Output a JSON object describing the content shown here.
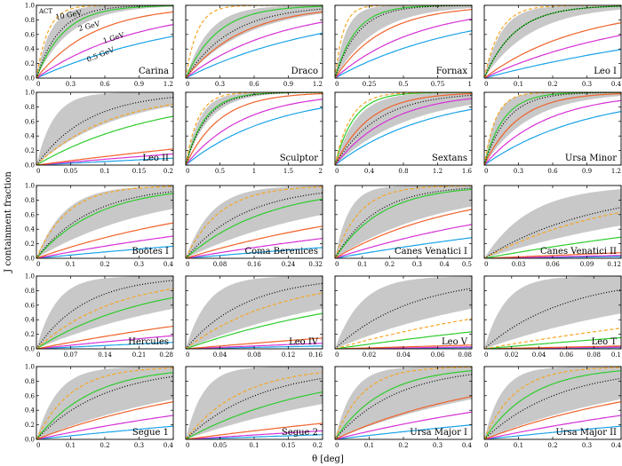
{
  "chart_data": {
    "type": "line",
    "ylabel": "J containment fraction",
    "xlabel": "θ [deg]",
    "ylim": [
      0,
      1
    ],
    "yticks": [
      "0.0",
      "0.2",
      "0.4",
      "0.6",
      "0.8",
      "1.0"
    ],
    "corner_tag": "ACT",
    "curve_labels": [
      "10 GeV",
      "2 GeV",
      "1 GeV",
      "0.5 GeV"
    ],
    "colors": {
      "band": "#c8c8c8",
      "median": "#000000",
      "dashed": "#f5a623",
      "e10": "#2ecc2e",
      "e2": "#f0622a",
      "e1": "#d631d6",
      "e05": "#1aa3e8"
    },
    "rows": [
      [
        {
          "name": "Carina",
          "xmax": 1.2,
          "xticks": [
            "0",
            "0.3",
            "0.6",
            "0.9",
            "1.2"
          ],
          "band_lo": 0.3,
          "band_hi": 0.12,
          "median": 0.2,
          "dashed": 0.1,
          "e10": 0.24,
          "e2": 0.5,
          "e1": 0.9,
          "e05": 1.4
        },
        {
          "name": "Draco",
          "xmax": 1.2,
          "xticks": [
            "0",
            "0.3",
            "0.6",
            "0.9",
            "1.2"
          ],
          "band_lo": 0.55,
          "band_hi": 0.2,
          "median": 0.4,
          "dashed": 0.1,
          "e10": 0.28,
          "e2": 0.5,
          "e1": 0.82,
          "e05": 1.25
        },
        {
          "name": "Fornax",
          "xmax": 1.0,
          "xticks": [
            "0",
            "0.25",
            "0.5",
            "0.75",
            "1"
          ],
          "band_lo": 0.3,
          "band_hi": 0.08,
          "median": 0.17,
          "dashed": 0.06,
          "e10": 0.15,
          "e2": 0.35,
          "e1": 0.6,
          "e05": 0.95
        },
        {
          "name": "Leo I",
          "xmax": 0.4,
          "xticks": [
            "0",
            "0.1",
            "0.2",
            "0.3",
            "0.4"
          ],
          "band_lo": 0.14,
          "band_hi": 0.05,
          "median": 0.09,
          "dashed": 0.045,
          "e10": 0.09,
          "e2": 0.28,
          "e1": 0.45,
          "e05": 0.8
        }
      ],
      [
        {
          "name": "Leo II",
          "xmax": 0.2,
          "xticks": [
            "0",
            "0.05",
            "0.1",
            "0.15",
            "0.2"
          ],
          "band_lo": 0.12,
          "band_hi": 0.025,
          "median": 0.075,
          "dashed": 0.11,
          "e10": 0.18,
          "e2": 0.8,
          "e1": 1.2,
          "e05": 2.0
        },
        {
          "name": "Sculptor",
          "xmax": 2.0,
          "xticks": [
            "0",
            "0.5",
            "1",
            "1.5",
            "2"
          ],
          "band_lo": 0.35,
          "band_hi": 0.2,
          "median": 0.3,
          "dashed": 0.18,
          "e10": 0.28,
          "e2": 0.5,
          "e1": 0.85,
          "e05": 1.3
        },
        {
          "name": "Sextans",
          "xmax": 1.6,
          "xticks": [
            "0",
            "0.4",
            "0.8",
            "1.2",
            "1.6"
          ],
          "band_lo": 0.9,
          "band_hi": 0.25,
          "median": 0.5,
          "dashed": 0.18,
          "e10": 0.22,
          "e2": 0.4,
          "e1": 0.65,
          "e05": 1.1
        },
        {
          "name": "Ursa Minor",
          "xmax": 1.2,
          "xticks": [
            "0",
            "0.3",
            "0.6",
            "0.9",
            "1.2"
          ],
          "band_lo": 0.4,
          "band_hi": 0.1,
          "median": 0.2,
          "dashed": 0.1,
          "e10": 0.17,
          "e2": 0.3,
          "e1": 0.55,
          "e05": 0.9
        }
      ],
      [
        {
          "name": "Boötes I",
          "xmax": 0.4,
          "xticks": [
            "0",
            "0.1",
            "0.2",
            "0.3",
            "0.4"
          ],
          "band_lo": 0.35,
          "band_hi": 0.08,
          "median": 0.16,
          "dashed": 0.09,
          "e10": 0.18,
          "e2": 0.6,
          "e1": 1.1,
          "e05": 2.2
        },
        {
          "name": "Coma Berenices",
          "xmax": 0.32,
          "xticks": [
            "0",
            "0.08",
            "0.16",
            "0.24",
            "0.32"
          ],
          "band_lo": 0.35,
          "band_hi": 0.06,
          "median": 0.14,
          "dashed": 0.08,
          "e10": 0.19,
          "e2": 0.55,
          "e1": 1.0,
          "e05": 2.0
        },
        {
          "name": "Canes Venatici I",
          "xmax": 0.5,
          "xticks": [
            "0",
            "0.1",
            "0.2",
            "0.3",
            "0.4",
            "0.5"
          ],
          "band_lo": 0.4,
          "band_hi": 0.05,
          "median": 0.15,
          "dashed": 0.09,
          "e10": 0.17,
          "e2": 0.45,
          "e1": 0.8,
          "e05": 1.5
        },
        {
          "name": "Canes Venatici II",
          "xmax": 0.12,
          "xticks": [
            "0",
            "0.03",
            "0.06",
            "0.09",
            "0.12"
          ],
          "band_lo": 0.2,
          "band_hi": 0.04,
          "median": 0.1,
          "dashed": 0.12,
          "e10": 0.35,
          "e2": 1.5,
          "e1": 3.0,
          "e05": 5.0
        }
      ],
      [
        {
          "name": "Hercules",
          "xmax": 0.28,
          "xticks": [
            "0",
            "0.07",
            "0.14",
            "0.21",
            "0.28"
          ],
          "band_lo": 0.35,
          "band_hi": 0.04,
          "median": 0.1,
          "dashed": 0.16,
          "e10": 0.23,
          "e2": 0.75,
          "e1": 1.4,
          "e05": 3.0
        },
        {
          "name": "Leo IV",
          "xmax": 0.16,
          "xticks": [
            "0",
            "0.04",
            "0.08",
            "0.12",
            "0.16"
          ],
          "band_lo": 0.2,
          "band_hi": 0.025,
          "median": 0.07,
          "dashed": 0.11,
          "e10": 0.24,
          "e2": 1.0,
          "e1": 2.0,
          "e05": 4.0
        },
        {
          "name": "Leo V",
          "xmax": 0.08,
          "xticks": [
            "0",
            "0.02",
            "0.04",
            "0.06",
            "0.08"
          ],
          "band_lo": 0.1,
          "band_hi": 0.015,
          "median": 0.045,
          "dashed": 0.15,
          "e10": 0.3,
          "e2": 1.5,
          "e1": 3.0,
          "e05": 5.0
        },
        {
          "name": "Leo T",
          "xmax": 0.1,
          "xticks": [
            "0",
            "0.02",
            "0.04",
            "0.06",
            "0.08",
            "0.1"
          ],
          "band_lo": 0.15,
          "band_hi": 0.015,
          "median": 0.06,
          "dashed": 0.3,
          "e10": 0.6,
          "e2": 2.5,
          "e1": 4.0,
          "e05": 6.0
        }
      ],
      [
        {
          "name": "Segue 1",
          "xmax": 0.4,
          "xticks": [
            "0",
            "0.1",
            "0.2",
            "0.3",
            "0.4"
          ],
          "band_lo": 0.5,
          "band_hi": 0.06,
          "median": 0.2,
          "dashed": 0.1,
          "e10": 0.16,
          "e2": 0.55,
          "e1": 1.0,
          "e05": 2.0
        },
        {
          "name": "Segue 2",
          "xmax": 0.2,
          "xticks": [
            "0",
            "0.05",
            "0.1",
            "0.15",
            "0.2"
          ],
          "band_lo": 0.3,
          "band_hi": 0.025,
          "median": 0.11,
          "dashed": 0.08,
          "e10": 0.19,
          "e2": 0.8,
          "e1": 1.6,
          "e05": 3.0
        },
        {
          "name": "Ursa Major I",
          "xmax": 0.4,
          "xticks": [
            "0",
            "0.1",
            "0.2",
            "0.3",
            "0.4"
          ],
          "band_lo": 0.5,
          "band_hi": 0.05,
          "median": 0.18,
          "dashed": 0.08,
          "e10": 0.14,
          "e2": 0.45,
          "e1": 0.85,
          "e05": 1.8
        },
        {
          "name": "Ursa Major II",
          "xmax": 0.4,
          "xticks": [
            "0",
            "0.1",
            "0.2",
            "0.3",
            "0.4"
          ],
          "band_lo": 0.5,
          "band_hi": 0.05,
          "median": 0.22,
          "dashed": 0.09,
          "e10": 0.14,
          "e2": 0.55,
          "e1": 1.0,
          "e05": 2.0
        }
      ]
    ]
  }
}
